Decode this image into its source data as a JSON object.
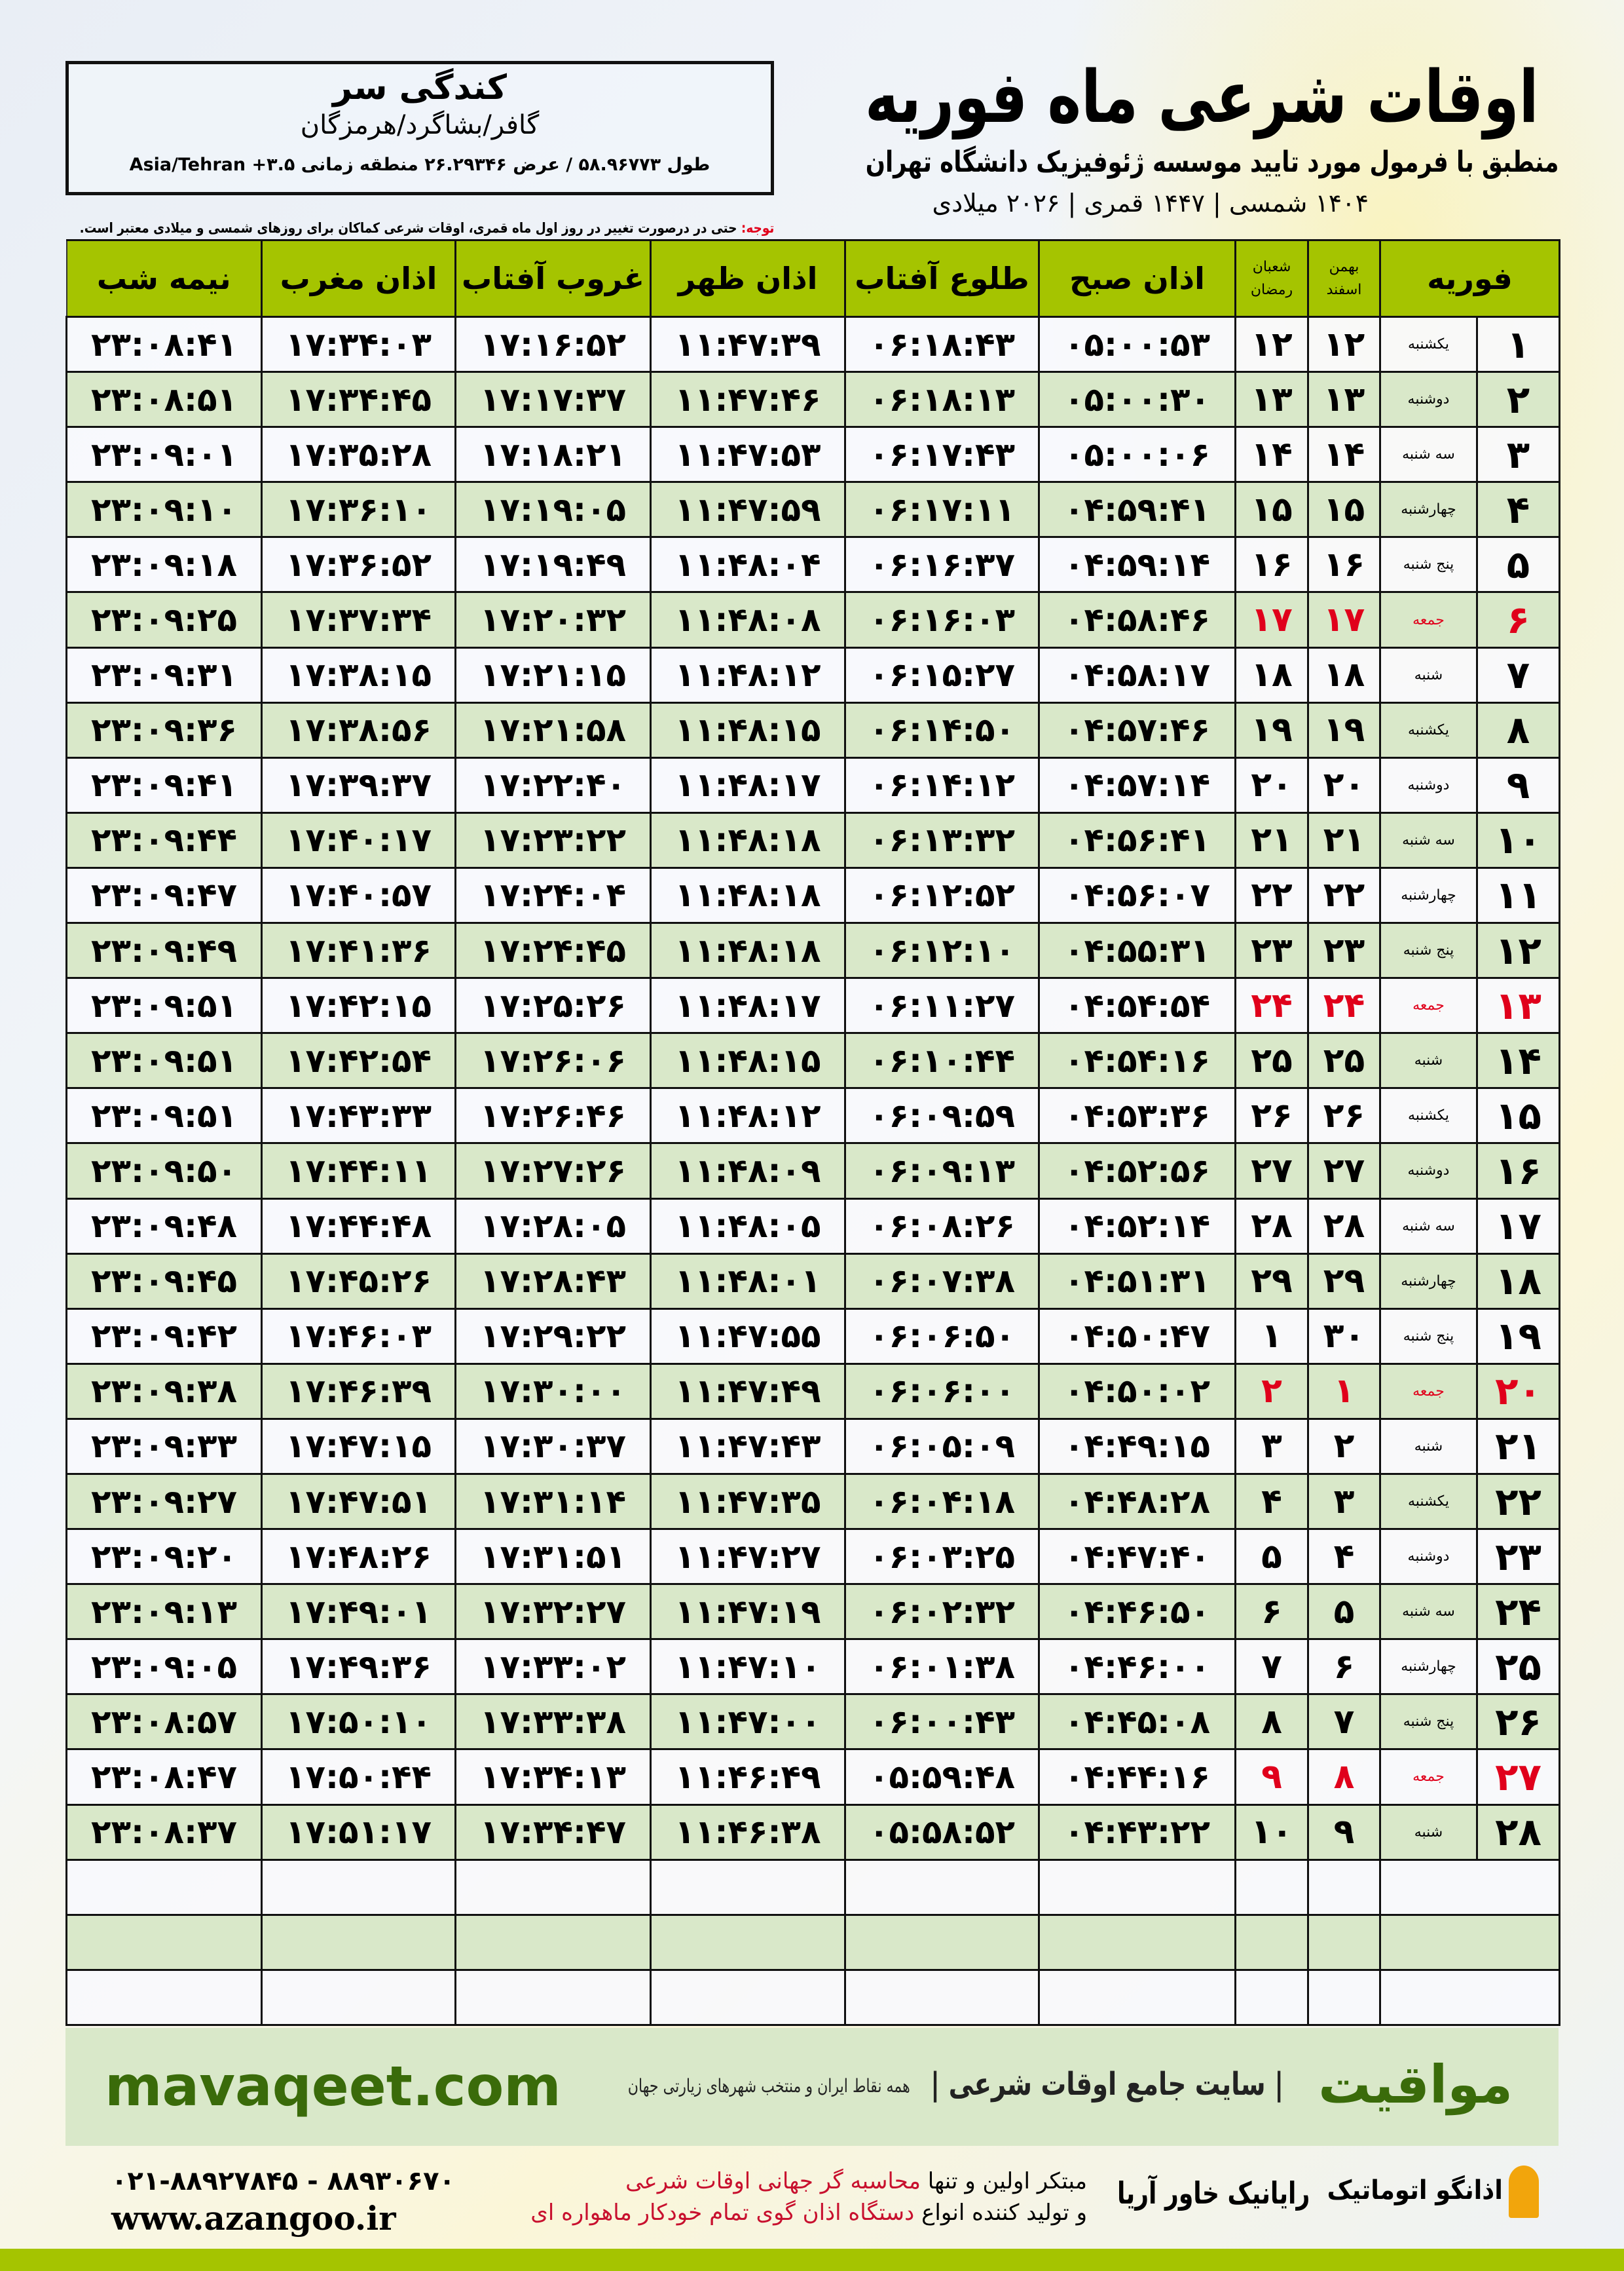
{
  "location": {
    "city": "کندگی سر",
    "region": "گافر/بشاگرد/هرمزگان",
    "coords": "طول ۵۸.۹۶۷۷۳ / عرض ۲۶.۲۹۳۴۶ منطقه زمانی ۳.۵+ Asia/Tehran"
  },
  "header": {
    "title": "اوقات شرعی ماه فوریه",
    "subtitle": "منطبق با فرمول مورد تایید موسسه ژئوفیزیک دانشگاه تهران",
    "dateline": "۱۴۰۴ شمسی | ۱۴۴۷ قمری | ۲۰۲۶ میلادی"
  },
  "note": {
    "label": "توجه:",
    "text": " حتی در درصورت تغییر در روز اول ماه قمری، اوقات شرعی کماکان برای روزهای شمسی و میلادی معتبر است."
  },
  "table": {
    "headers": {
      "month": "فوریه",
      "bahman": "بهمن",
      "esfand": "اسفند",
      "shaban": "شعبان",
      "ramadan": "رمضان",
      "fajr": "اذان صبح",
      "sunrise": "طلوع آفتاب",
      "dhuhr": "اذان ظهر",
      "sunset": "غروب آفتاب",
      "maghrib": "اذان مغرب",
      "midnight": "نیمه شب"
    },
    "rows": [
      [
        "۱",
        "یکشنبه",
        "۱۲",
        "۱۲",
        "۰۵:۰۰:۵۳",
        "۰۶:۱۸:۴۳",
        "۱۱:۴۷:۳۹",
        "۱۷:۱۶:۵۲",
        "۱۷:۳۴:۰۳",
        "۲۳:۰۸:۴۱"
      ],
      [
        "۲",
        "دوشنبه",
        "۱۳",
        "۱۳",
        "۰۵:۰۰:۳۰",
        "۰۶:۱۸:۱۳",
        "۱۱:۴۷:۴۶",
        "۱۷:۱۷:۳۷",
        "۱۷:۳۴:۴۵",
        "۲۳:۰۸:۵۱"
      ],
      [
        "۳",
        "سه شنبه",
        "۱۴",
        "۱۴",
        "۰۵:۰۰:۰۶",
        "۰۶:۱۷:۴۳",
        "۱۱:۴۷:۵۳",
        "۱۷:۱۸:۲۱",
        "۱۷:۳۵:۲۸",
        "۲۳:۰۹:۰۱"
      ],
      [
        "۴",
        "چهارشنبه",
        "۱۵",
        "۱۵",
        "۰۴:۵۹:۴۱",
        "۰۶:۱۷:۱۱",
        "۱۱:۴۷:۵۹",
        "۱۷:۱۹:۰۵",
        "۱۷:۳۶:۱۰",
        "۲۳:۰۹:۱۰"
      ],
      [
        "۵",
        "پنج شنبه",
        "۱۶",
        "۱۶",
        "۰۴:۵۹:۱۴",
        "۰۶:۱۶:۳۷",
        "۱۱:۴۸:۰۴",
        "۱۷:۱۹:۴۹",
        "۱۷:۳۶:۵۲",
        "۲۳:۰۹:۱۸"
      ],
      [
        "۶",
        "جمعه",
        "۱۷",
        "۱۷",
        "۰۴:۵۸:۴۶",
        "۰۶:۱۶:۰۳",
        "۱۱:۴۸:۰۸",
        "۱۷:۲۰:۳۲",
        "۱۷:۳۷:۳۴",
        "۲۳:۰۹:۲۵"
      ],
      [
        "۷",
        "شنبه",
        "۱۸",
        "۱۸",
        "۰۴:۵۸:۱۷",
        "۰۶:۱۵:۲۷",
        "۱۱:۴۸:۱۲",
        "۱۷:۲۱:۱۵",
        "۱۷:۳۸:۱۵",
        "۲۳:۰۹:۳۱"
      ],
      [
        "۸",
        "یکشنبه",
        "۱۹",
        "۱۹",
        "۰۴:۵۷:۴۶",
        "۰۶:۱۴:۵۰",
        "۱۱:۴۸:۱۵",
        "۱۷:۲۱:۵۸",
        "۱۷:۳۸:۵۶",
        "۲۳:۰۹:۳۶"
      ],
      [
        "۹",
        "دوشنبه",
        "۲۰",
        "۲۰",
        "۰۴:۵۷:۱۴",
        "۰۶:۱۴:۱۲",
        "۱۱:۴۸:۱۷",
        "۱۷:۲۲:۴۰",
        "۱۷:۳۹:۳۷",
        "۲۳:۰۹:۴۱"
      ],
      [
        "۱۰",
        "سه شنبه",
        "۲۱",
        "۲۱",
        "۰۴:۵۶:۴۱",
        "۰۶:۱۳:۳۲",
        "۱۱:۴۸:۱۸",
        "۱۷:۲۳:۲۲",
        "۱۷:۴۰:۱۷",
        "۲۳:۰۹:۴۴"
      ],
      [
        "۱۱",
        "چهارشنبه",
        "۲۲",
        "۲۲",
        "۰۴:۵۶:۰۷",
        "۰۶:۱۲:۵۲",
        "۱۱:۴۸:۱۸",
        "۱۷:۲۴:۰۴",
        "۱۷:۴۰:۵۷",
        "۲۳:۰۹:۴۷"
      ],
      [
        "۱۲",
        "پنج شنبه",
        "۲۳",
        "۲۳",
        "۰۴:۵۵:۳۱",
        "۰۶:۱۲:۱۰",
        "۱۱:۴۸:۱۸",
        "۱۷:۲۴:۴۵",
        "۱۷:۴۱:۳۶",
        "۲۳:۰۹:۴۹"
      ],
      [
        "۱۳",
        "جمعه",
        "۲۴",
        "۲۴",
        "۰۴:۵۴:۵۴",
        "۰۶:۱۱:۲۷",
        "۱۱:۴۸:۱۷",
        "۱۷:۲۵:۲۶",
        "۱۷:۴۲:۱۵",
        "۲۳:۰۹:۵۱"
      ],
      [
        "۱۴",
        "شنبه",
        "۲۵",
        "۲۵",
        "۰۴:۵۴:۱۶",
        "۰۶:۱۰:۴۴",
        "۱۱:۴۸:۱۵",
        "۱۷:۲۶:۰۶",
        "۱۷:۴۲:۵۴",
        "۲۳:۰۹:۵۱"
      ],
      [
        "۱۵",
        "یکشنبه",
        "۲۶",
        "۲۶",
        "۰۴:۵۳:۳۶",
        "۰۶:۰۹:۵۹",
        "۱۱:۴۸:۱۲",
        "۱۷:۲۶:۴۶",
        "۱۷:۴۳:۳۳",
        "۲۳:۰۹:۵۱"
      ],
      [
        "۱۶",
        "دوشنبه",
        "۲۷",
        "۲۷",
        "۰۴:۵۲:۵۶",
        "۰۶:۰۹:۱۳",
        "۱۱:۴۸:۰۹",
        "۱۷:۲۷:۲۶",
        "۱۷:۴۴:۱۱",
        "۲۳:۰۹:۵۰"
      ],
      [
        "۱۷",
        "سه شنبه",
        "۲۸",
        "۲۸",
        "۰۴:۵۲:۱۴",
        "۰۶:۰۸:۲۶",
        "۱۱:۴۸:۰۵",
        "۱۷:۲۸:۰۵",
        "۱۷:۴۴:۴۸",
        "۲۳:۰۹:۴۸"
      ],
      [
        "۱۸",
        "چهارشنبه",
        "۲۹",
        "۲۹",
        "۰۴:۵۱:۳۱",
        "۰۶:۰۷:۳۸",
        "۱۱:۴۸:۰۱",
        "۱۷:۲۸:۴۳",
        "۱۷:۴۵:۲۶",
        "۲۳:۰۹:۴۵"
      ],
      [
        "۱۹",
        "پنج شنبه",
        "۳۰",
        "۱",
        "۰۴:۵۰:۴۷",
        "۰۶:۰۶:۵۰",
        "۱۱:۴۷:۵۵",
        "۱۷:۲۹:۲۲",
        "۱۷:۴۶:۰۳",
        "۲۳:۰۹:۴۲"
      ],
      [
        "۲۰",
        "جمعه",
        "۱",
        "۲",
        "۰۴:۵۰:۰۲",
        "۰۶:۰۶:۰۰",
        "۱۱:۴۷:۴۹",
        "۱۷:۳۰:۰۰",
        "۱۷:۴۶:۳۹",
        "۲۳:۰۹:۳۸"
      ],
      [
        "۲۱",
        "شنبه",
        "۲",
        "۳",
        "۰۴:۴۹:۱۵",
        "۰۶:۰۵:۰۹",
        "۱۱:۴۷:۴۳",
        "۱۷:۳۰:۳۷",
        "۱۷:۴۷:۱۵",
        "۲۳:۰۹:۳۳"
      ],
      [
        "۲۲",
        "یکشنبه",
        "۳",
        "۴",
        "۰۴:۴۸:۲۸",
        "۰۶:۰۴:۱۸",
        "۱۱:۴۷:۳۵",
        "۱۷:۳۱:۱۴",
        "۱۷:۴۷:۵۱",
        "۲۳:۰۹:۲۷"
      ],
      [
        "۲۳",
        "دوشنبه",
        "۴",
        "۵",
        "۰۴:۴۷:۴۰",
        "۰۶:۰۳:۲۵",
        "۱۱:۴۷:۲۷",
        "۱۷:۳۱:۵۱",
        "۱۷:۴۸:۲۶",
        "۲۳:۰۹:۲۰"
      ],
      [
        "۲۴",
        "سه شنبه",
        "۵",
        "۶",
        "۰۴:۴۶:۵۰",
        "۰۶:۰۲:۳۲",
        "۱۱:۴۷:۱۹",
        "۱۷:۳۲:۲۷",
        "۱۷:۴۹:۰۱",
        "۲۳:۰۹:۱۳"
      ],
      [
        "۲۵",
        "چهارشنبه",
        "۶",
        "۷",
        "۰۴:۴۶:۰۰",
        "۰۶:۰۱:۳۸",
        "۱۱:۴۷:۱۰",
        "۱۷:۳۳:۰۲",
        "۱۷:۴۹:۳۶",
        "۲۳:۰۹:۰۵"
      ],
      [
        "۲۶",
        "پنج شنبه",
        "۷",
        "۸",
        "۰۴:۴۵:۰۸",
        "۰۶:۰۰:۴۳",
        "۱۱:۴۷:۰۰",
        "۱۷:۳۳:۳۸",
        "۱۷:۵۰:۱۰",
        "۲۳:۰۸:۵۷"
      ],
      [
        "۲۷",
        "جمعه",
        "۸",
        "۹",
        "۰۴:۴۴:۱۶",
        "۰۵:۵۹:۴۸",
        "۱۱:۴۶:۴۹",
        "۱۷:۳۴:۱۳",
        "۱۷:۵۰:۴۴",
        "۲۳:۰۸:۴۷"
      ],
      [
        "۲۸",
        "شنبه",
        "۹",
        "۱۰",
        "۰۴:۴۳:۲۲",
        "۰۵:۵۸:۵۲",
        "۱۱:۴۶:۳۸",
        "۱۷:۳۴:۴۷",
        "۱۷:۵۱:۱۷",
        "۲۳:۰۸:۳۷"
      ]
    ],
    "holiday_weekday": "جمعه",
    "empty_rows": 3
  },
  "colors": {
    "header_green": "#a5c400",
    "row_green": "#d9e8c9",
    "holiday_red": "#e0001b",
    "brand_green": "#3a6b0a"
  },
  "footer": {
    "brand": "مواقیت",
    "slogan": "| سایت جامع اوقات شرعی |",
    "sub": "همه نقاط ایران و منتخب شهرهای زیارتی جهان",
    "site": "mavaqeet.com",
    "phone": "۰۲۱-۸۸۹۲۷۸۴۵ - ۸۸۹۳۰۶۷۰",
    "azsite": "www.azangoo.ir",
    "desc1a": "مبتکر اولین و تنها ",
    "desc1b": "محاسبه گر جهانی اوقات شرعی",
    "desc2a": "و تولید کننده انواع ",
    "desc2b": "دستگاه اذان گوی تمام خودکار ماهواره ای",
    "logo_rayanik": "رایانیک خاور آریا",
    "logo_azangoo": "اذانگو اتوماتیک"
  }
}
